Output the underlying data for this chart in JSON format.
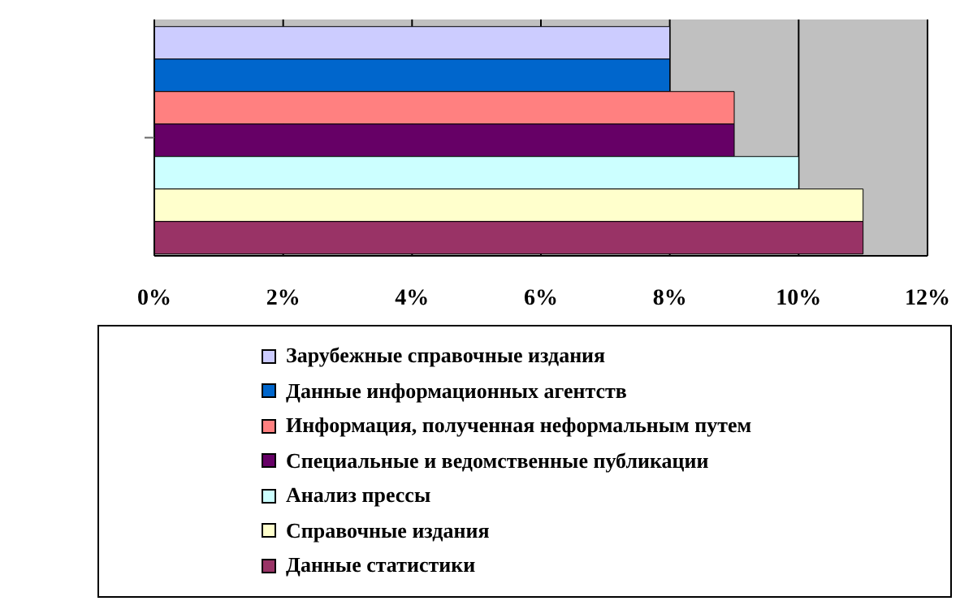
{
  "chart_data": {
    "type": "bar",
    "orientation": "horizontal",
    "categories": [
      null
    ],
    "series": [
      {
        "name": "Зарубежные справочные издания",
        "color": "#ccccff",
        "values": [
          8
        ]
      },
      {
        "name": "Данные информационных агентств",
        "color": "#0066cc",
        "values": [
          8
        ]
      },
      {
        "name": "Информация, полученная неформальным путем",
        "color": "#ff8080",
        "values": [
          9
        ]
      },
      {
        "name": "Специальные и ведомственные публикации",
        "color": "#660066",
        "values": [
          9
        ]
      },
      {
        "name": "Анализ прессы",
        "color": "#ccffff",
        "values": [
          10
        ]
      },
      {
        "name": "Справочные издания",
        "color": "#ffffcc",
        "values": [
          11
        ]
      },
      {
        "name": "Данные статистики",
        "color": "#993366",
        "values": [
          11
        ]
      }
    ],
    "xlim": [
      0,
      12
    ],
    "xticks": [
      {
        "value": 0,
        "label": "0%"
      },
      {
        "value": 2,
        "label": "2%"
      },
      {
        "value": 4,
        "label": "4%"
      },
      {
        "value": 6,
        "label": "6%"
      },
      {
        "value": 8,
        "label": "8%"
      },
      {
        "value": 10,
        "label": "10%"
      },
      {
        "value": 12,
        "label": "12%"
      }
    ],
    "grid": "x",
    "legend": "bottom"
  }
}
